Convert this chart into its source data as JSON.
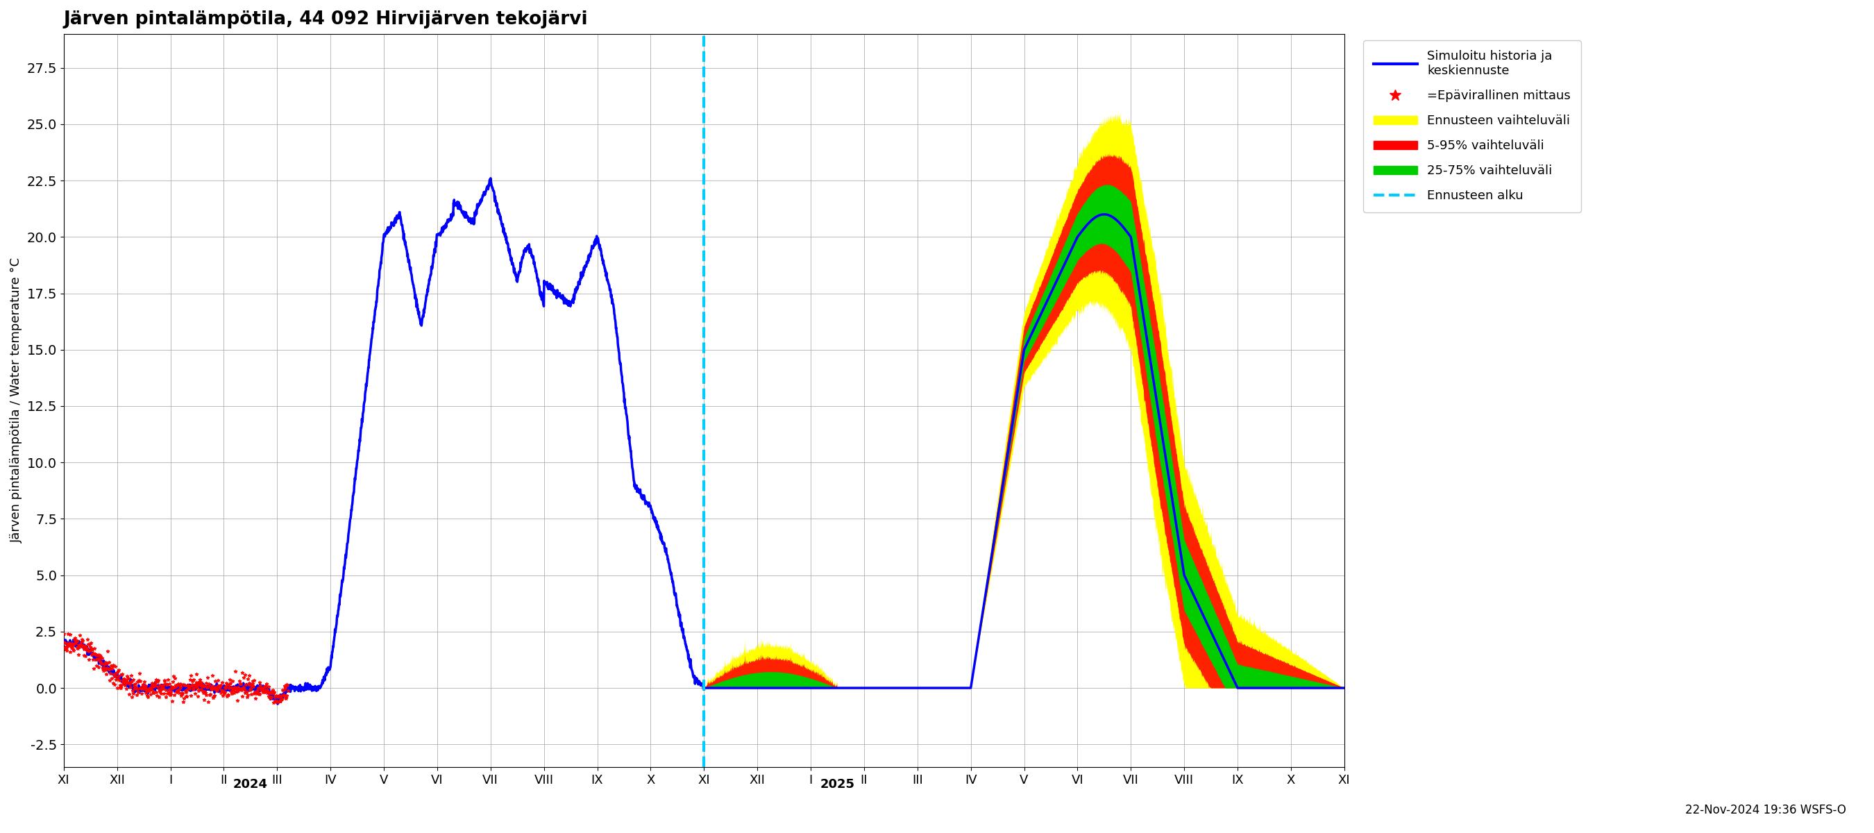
{
  "title": "Järven pintalämpötila, 44 092 Hirvijärven tekojärvi",
  "ylabel": "Järven pintalämpötila / Water temperature °C",
  "ylim": [
    -3.5,
    29.0
  ],
  "yticks": [
    -2.5,
    0.0,
    2.5,
    5.0,
    7.5,
    10.0,
    12.5,
    15.0,
    17.5,
    20.0,
    22.5,
    25.0,
    27.5
  ],
  "bg_color": "#ffffff",
  "grid_color": "#aaaaaa",
  "timestamp_text": "22-Nov-2024 19:36 WSFS-O",
  "legend": {
    "sim_label": "Simuloitu historia ja\nkeskiennuste",
    "sim_color": "#0000ff",
    "obs_label": "=Epävirallinen mittaus",
    "obs_color": "#ff0000",
    "enn_vaihteluvali_label": "Ennusteen vaihteluväli",
    "enn_vaihteluvali_color": "#ffff00",
    "p595_label": "5-95% vaihteluväli",
    "p595_color": "#ff0000",
    "p2575_label": "25-75% vaihteluväli",
    "p2575_color": "#00cc00",
    "forecast_start_label": "Ennusteen alku",
    "forecast_start_color": "#00ccff"
  }
}
